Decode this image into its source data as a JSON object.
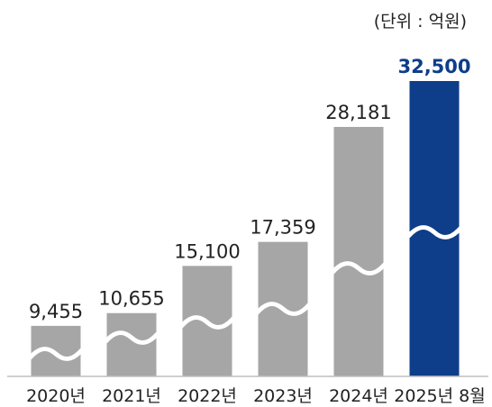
{
  "chart_data": {
    "type": "bar",
    "unit_label": "(단위 : 억원)",
    "categories": [
      "2020년",
      "2021년",
      "2022년",
      "2023년",
      "2024년",
      "2025년 8월"
    ],
    "values": [
      9455,
      10655,
      15100,
      17359,
      28181,
      32500
    ],
    "value_labels": [
      "9,455",
      "10,655",
      "15,100",
      "17,359",
      "28,181",
      "32,500"
    ],
    "axis_break": true,
    "grid": false,
    "legend": "none",
    "highlight_index": 5,
    "colors": {
      "bar": "#a6a6a6",
      "highlight_bar": "#0e3d8a",
      "highlight_label": "#0e3d8a",
      "baseline": "#bfbfbf",
      "break_mark": "#ffffff"
    }
  }
}
